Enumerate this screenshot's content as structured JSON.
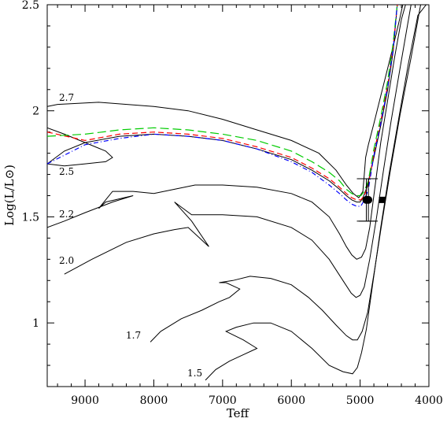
{
  "chart_data": {
    "type": "line",
    "xlabel": "Teff",
    "ylabel": "Log(L/L⊙)",
    "xlim": [
      9550,
      4000
    ],
    "ylim": [
      0.7,
      2.5
    ],
    "x_ticks": [
      9000,
      8000,
      7000,
      6000,
      5000,
      4000
    ],
    "y_ticks": [
      1,
      1.5,
      2,
      2.5
    ],
    "y_tick_labels": [
      "1",
      "1.5",
      "2",
      "2.5"
    ],
    "grid": false,
    "annotations": [
      "2.7",
      "2.5",
      "2.2",
      "2.0",
      "1.7",
      "1.5"
    ],
    "series": [
      {
        "name": "2.7",
        "color": "#000000",
        "dash": "",
        "x": [
          9550,
          9400,
          8800,
          8000,
          7500,
          7000,
          6500,
          6000,
          5600,
          5350,
          5200,
          5100,
          5020,
          4960,
          4940,
          4920,
          4880,
          4800,
          4700,
          4600,
          4500,
          4420,
          4380
        ],
        "y": [
          2.02,
          2.03,
          2.04,
          2.02,
          2.0,
          1.96,
          1.91,
          1.86,
          1.8,
          1.72,
          1.65,
          1.61,
          1.59,
          1.62,
          1.7,
          1.78,
          1.84,
          1.94,
          2.07,
          2.2,
          2.33,
          2.44,
          2.5
        ]
      },
      {
        "name": "2.5",
        "color": "#000000",
        "dash": "",
        "x": [
          9550,
          9300,
          9000,
          8700,
          8600,
          8700,
          9000,
          9300,
          9550,
          9300,
          9000,
          8500,
          8000,
          7500,
          7000,
          6500,
          6000,
          5700,
          5450,
          5300,
          5200,
          5120,
          5050,
          5000,
          4960,
          4900,
          4800,
          4700,
          4600,
          4520,
          4460
        ],
        "y": [
          1.92,
          1.89,
          1.85,
          1.81,
          1.78,
          1.76,
          1.75,
          1.74,
          1.75,
          1.81,
          1.85,
          1.88,
          1.89,
          1.88,
          1.86,
          1.82,
          1.77,
          1.72,
          1.67,
          1.63,
          1.6,
          1.58,
          1.57,
          1.57,
          1.59,
          1.64,
          1.78,
          1.93,
          2.1,
          2.28,
          2.5
        ]
      },
      {
        "name": "2.2",
        "color": "#000000",
        "dash": "",
        "x": [
          9550,
          9300,
          9000,
          8600,
          8300,
          8700,
          8800,
          8600,
          8300,
          8000,
          7700,
          7400,
          7000,
          6500,
          6000,
          5700,
          5450,
          5300,
          5200,
          5120,
          5050,
          4980,
          4920,
          4860,
          4780,
          4700,
          4600,
          4500,
          4400,
          4340
        ],
        "y": [
          1.45,
          1.48,
          1.52,
          1.57,
          1.6,
          1.57,
          1.54,
          1.62,
          1.62,
          1.61,
          1.63,
          1.65,
          1.65,
          1.64,
          1.61,
          1.57,
          1.5,
          1.42,
          1.36,
          1.32,
          1.3,
          1.31,
          1.35,
          1.45,
          1.65,
          1.85,
          2.05,
          2.25,
          2.43,
          2.5
        ]
      },
      {
        "name": "2.0",
        "color": "#000000",
        "dash": "",
        "x": [
          9300,
          8900,
          8400,
          8000,
          7700,
          7500,
          7200,
          7450,
          7700,
          7450,
          7200,
          7000,
          6500,
          6000,
          5700,
          5450,
          5250,
          5130,
          5060,
          5000,
          4940,
          4860,
          4760,
          4660,
          4550,
          4420,
          4260
        ],
        "y": [
          1.23,
          1.3,
          1.38,
          1.42,
          1.44,
          1.45,
          1.36,
          1.48,
          1.57,
          1.51,
          1.51,
          1.51,
          1.5,
          1.45,
          1.39,
          1.3,
          1.2,
          1.14,
          1.12,
          1.13,
          1.17,
          1.3,
          1.5,
          1.72,
          1.95,
          2.2,
          2.5
        ]
      },
      {
        "name": "1.7",
        "color": "#000000",
        "dash": "",
        "x": [
          8050,
          7900,
          7600,
          7300,
          7050,
          6900,
          6750,
          6950,
          7050,
          6850,
          6600,
          6300,
          6000,
          5750,
          5550,
          5350,
          5200,
          5110,
          5040,
          4970,
          4890,
          4790,
          4680,
          4560,
          4420,
          4260,
          4120
        ],
        "y": [
          0.91,
          0.96,
          1.02,
          1.06,
          1.1,
          1.12,
          1.16,
          1.19,
          1.19,
          1.2,
          1.22,
          1.21,
          1.18,
          1.12,
          1.06,
          0.99,
          0.94,
          0.92,
          0.92,
          0.96,
          1.05,
          1.25,
          1.48,
          1.72,
          1.98,
          2.25,
          2.5
        ]
      },
      {
        "name": "1.5",
        "color": "#000000",
        "dash": "",
        "x": [
          7250,
          7100,
          6900,
          6700,
          6500,
          6700,
          6950,
          6800,
          6550,
          6300,
          6000,
          5700,
          5450,
          5250,
          5110,
          5040,
          4980,
          4910,
          4810,
          4700,
          4580,
          4440,
          4300,
          4160,
          4040
        ],
        "y": [
          0.73,
          0.78,
          0.82,
          0.85,
          0.88,
          0.92,
          0.96,
          0.98,
          1.0,
          1.0,
          0.96,
          0.88,
          0.8,
          0.77,
          0.76,
          0.79,
          0.86,
          0.97,
          1.2,
          1.45,
          1.7,
          1.96,
          2.22,
          2.45,
          2.5
        ]
      },
      {
        "name": "",
        "color": "#ff0000",
        "dash": "7 4",
        "x": [
          9550,
          9000,
          8500,
          8000,
          7500,
          7000,
          6500,
          6000,
          5700,
          5450,
          5300,
          5200,
          5120,
          5050,
          4990,
          4940,
          4880,
          4800,
          4700,
          4600,
          4520,
          4460
        ],
        "y": [
          1.9,
          1.86,
          1.89,
          1.9,
          1.89,
          1.87,
          1.83,
          1.78,
          1.73,
          1.68,
          1.64,
          1.61,
          1.59,
          1.58,
          1.58,
          1.6,
          1.65,
          1.8,
          1.95,
          2.12,
          2.3,
          2.5
        ]
      },
      {
        "name": "",
        "color": "#00cc00",
        "dash": "11 5",
        "x": [
          9550,
          9000,
          8500,
          8000,
          7500,
          7000,
          6500,
          6000,
          5700,
          5450,
          5300,
          5200,
          5120,
          5050,
          4990,
          4940,
          4880,
          4800,
          4700,
          4600,
          4520,
          4460
        ],
        "y": [
          1.88,
          1.89,
          1.91,
          1.92,
          1.91,
          1.89,
          1.86,
          1.81,
          1.76,
          1.71,
          1.67,
          1.63,
          1.61,
          1.6,
          1.6,
          1.62,
          1.67,
          1.82,
          1.97,
          2.14,
          2.32,
          2.5
        ]
      },
      {
        "name": "",
        "color": "#0000ff",
        "dash": "6 3 1 3",
        "x": [
          9550,
          9000,
          8500,
          8000,
          7500,
          7000,
          6500,
          6000,
          5700,
          5450,
          5300,
          5200,
          5120,
          5050,
          4990,
          4940,
          4880,
          4800,
          4700,
          4600,
          4520,
          4460
        ],
        "y": [
          1.75,
          1.84,
          1.87,
          1.89,
          1.88,
          1.86,
          1.82,
          1.76,
          1.71,
          1.65,
          1.61,
          1.58,
          1.56,
          1.55,
          1.55,
          1.58,
          1.63,
          1.79,
          1.94,
          2.11,
          2.29,
          2.5
        ]
      }
    ],
    "points": [
      {
        "x": 4910,
        "y": 1.58,
        "shape": "circle",
        "xerr": 0,
        "yerr": 0.1
      },
      {
        "x": 4880,
        "y": 1.58,
        "shape": "circle",
        "xerr": 0,
        "yerr": 0.1
      },
      {
        "x": 4680,
        "y": 1.58,
        "shape": "square",
        "xerr": 0,
        "yerr": 0
      }
    ]
  }
}
